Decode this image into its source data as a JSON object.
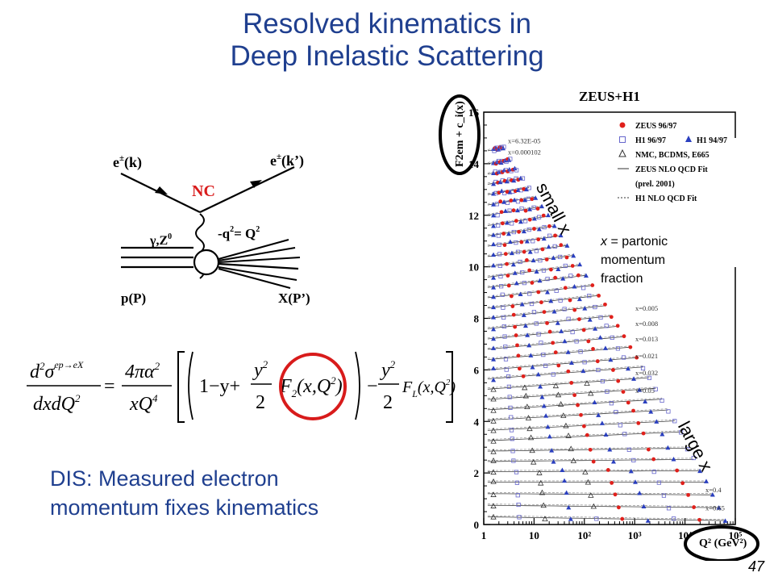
{
  "slide": {
    "title_line1": "Resolved kinematics in",
    "title_line2": "Deep Inelastic Scattering",
    "caption_line1": "DIS: Measured electron",
    "caption_line2": "momentum fixes kinematics",
    "page_number": "47"
  },
  "feynman": {
    "e_in": "e",
    "e_in_sup": "±",
    "e_in_arg": "(k)",
    "e_out": "e",
    "e_out_sup": "±",
    "e_out_arg": "(k’)",
    "nc": "NC",
    "boson": "γ,Z",
    "boson_sup": "0",
    "q2": "-q",
    "q2_sup": "2",
    "q2_eq": "= Q",
    "q2_sup2": "2",
    "proton": "p(P)",
    "hadrons": "X(P’)",
    "highlight_color": "#d81b1b"
  },
  "formula": {
    "lhs_num": "d",
    "lhs_num_sup": "2",
    "lhs_sigma": "σ",
    "lhs_sigma_sup": "ep→eX",
    "lhs_den": "dxdQ",
    "lhs_den_sup": "2",
    "eq": "=",
    "pref_num": "4πα",
    "pref_num_sup": "2",
    "pref_den": "xQ",
    "pref_den_sup": "4",
    "one_minus_y": "1−y+",
    "y2_num": "y",
    "y2_num_sup": "2",
    "two": "2",
    "f2": "F",
    "f2_sub": "2",
    "f2_arg": "(x,Q",
    "f2_arg_sup": "2",
    "f2_close": ")",
    "minus": "−",
    "y2b_num": "y",
    "y2b_num_sup": "2",
    "two_b": "2",
    "fl": "F",
    "fl_sub": "L",
    "fl_arg": "(x,Q",
    "fl_arg_sup": "2",
    "fl_close": ")"
  },
  "annotations": {
    "small_x": "small x",
    "large_x": "large x",
    "xdef_line1_var": "x",
    "xdef_line1_rest": " = partonic",
    "xdef_line2": "momentum",
    "xdef_line3": "fraction"
  },
  "chart_data": {
    "type": "scatter",
    "title": "ZEUS+H1",
    "ylabel": "F2em + c_i(x)",
    "xlabel": "Q² (GeV²)",
    "x_scale": "log",
    "xlim": [
      1,
      100000
    ],
    "ylim": [
      0,
      16
    ],
    "x_ticks": [
      "1",
      "10",
      "10²",
      "10³",
      "10⁴",
      "10⁵"
    ],
    "y_ticks": [
      "0",
      "2",
      "4",
      "6",
      "8",
      "10",
      "12",
      "14",
      "16"
    ],
    "legend_position": "top-right",
    "legend": [
      {
        "label": "ZEUS 96/97",
        "marker": "filled-circle",
        "color": "#e0201b"
      },
      {
        "label": "H1 96/97",
        "marker": "open-square",
        "color": "#6666cc"
      },
      {
        "label": "H1 94/97",
        "marker": "filled-triangle",
        "color": "#2a3fbf"
      },
      {
        "label": "NMC, BCDMS, E665",
        "marker": "open-triangle",
        "color": "#333333"
      },
      {
        "label": "ZEUS NLO QCD Fit",
        "marker": "solid-line",
        "color": "#333333"
      },
      {
        "label": "(prel. 2001)",
        "marker": "none",
        "color": "#333333"
      },
      {
        "label": "H1 NLO QCD Fit",
        "marker": "dashed-line",
        "color": "#333333"
      }
    ],
    "bin_labels": [
      {
        "label": "x=6.32E-05",
        "y": 14.8
      },
      {
        "label": "x=0.000102",
        "y": 14.35
      },
      {
        "label": "x=0.005",
        "y": 8.3
      },
      {
        "label": "x=0.008",
        "y": 7.7
      },
      {
        "label": "x=0.013",
        "y": 7.1
      },
      {
        "label": "x=0.021",
        "y": 6.45
      },
      {
        "label": "x=0.032",
        "y": 5.8
      },
      {
        "label": "x=0.05",
        "y": 5.1
      },
      {
        "label": "x=0.4",
        "y": 1.25
      },
      {
        "label": "x=0.65",
        "y": 0.55
      }
    ],
    "series_offsets": [
      0.3,
      0.75,
      1.2,
      1.65,
      2.05,
      2.45,
      2.85,
      3.25,
      3.65,
      4.05,
      4.45,
      4.85,
      5.25,
      5.65,
      6.0,
      6.4,
      6.8,
      7.2,
      7.6,
      8.0,
      8.4,
      8.8,
      9.2,
      9.6,
      10.0,
      10.4,
      10.8,
      11.2,
      11.6,
      12.0,
      12.4,
      12.8,
      13.2,
      13.6,
      14.0,
      14.5
    ],
    "highlight_color": "#000000"
  }
}
